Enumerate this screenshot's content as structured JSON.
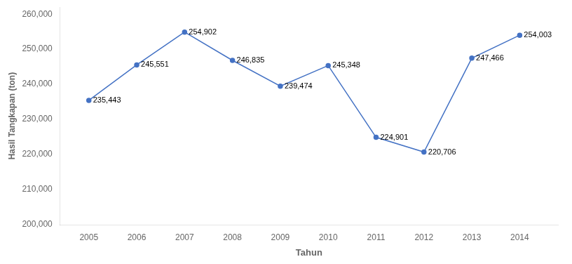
{
  "chart_data": {
    "type": "line",
    "x": [
      2005,
      2006,
      2007,
      2008,
      2009,
      2010,
      2011,
      2012,
      2013,
      2014
    ],
    "values": [
      235443,
      245551,
      254902,
      246835,
      239474,
      245348,
      224901,
      220706,
      247466,
      254003
    ],
    "value_labels": [
      "235,443",
      "245,551",
      "254,902",
      "246,835",
      "239,474",
      "245,348",
      "224,901",
      "220,706",
      "247,466",
      "254,003"
    ],
    "data_labels": true,
    "color": "#4472C4",
    "marker": "circle",
    "line_style": "solid",
    "xlabel": "Tahun",
    "ylabel": "Hasil Tangkapan (ton)",
    "xlim": [
      2004.4,
      2014.8
    ],
    "xticks": [
      2005,
      2006,
      2007,
      2008,
      2009,
      2010,
      2011,
      2012,
      2013,
      2014
    ],
    "ylim": [
      200000,
      262000
    ],
    "yticks": [
      {
        "value": 200000,
        "label": "200,000"
      },
      {
        "value": 210000,
        "label": "210,000"
      },
      {
        "value": 220000,
        "label": "220,000"
      },
      {
        "value": 230000,
        "label": "230,000"
      },
      {
        "value": 240000,
        "label": "240,000"
      },
      {
        "value": 250000,
        "label": "250,000"
      },
      {
        "value": 260000,
        "label": "260,000"
      }
    ],
    "grid": false
  }
}
